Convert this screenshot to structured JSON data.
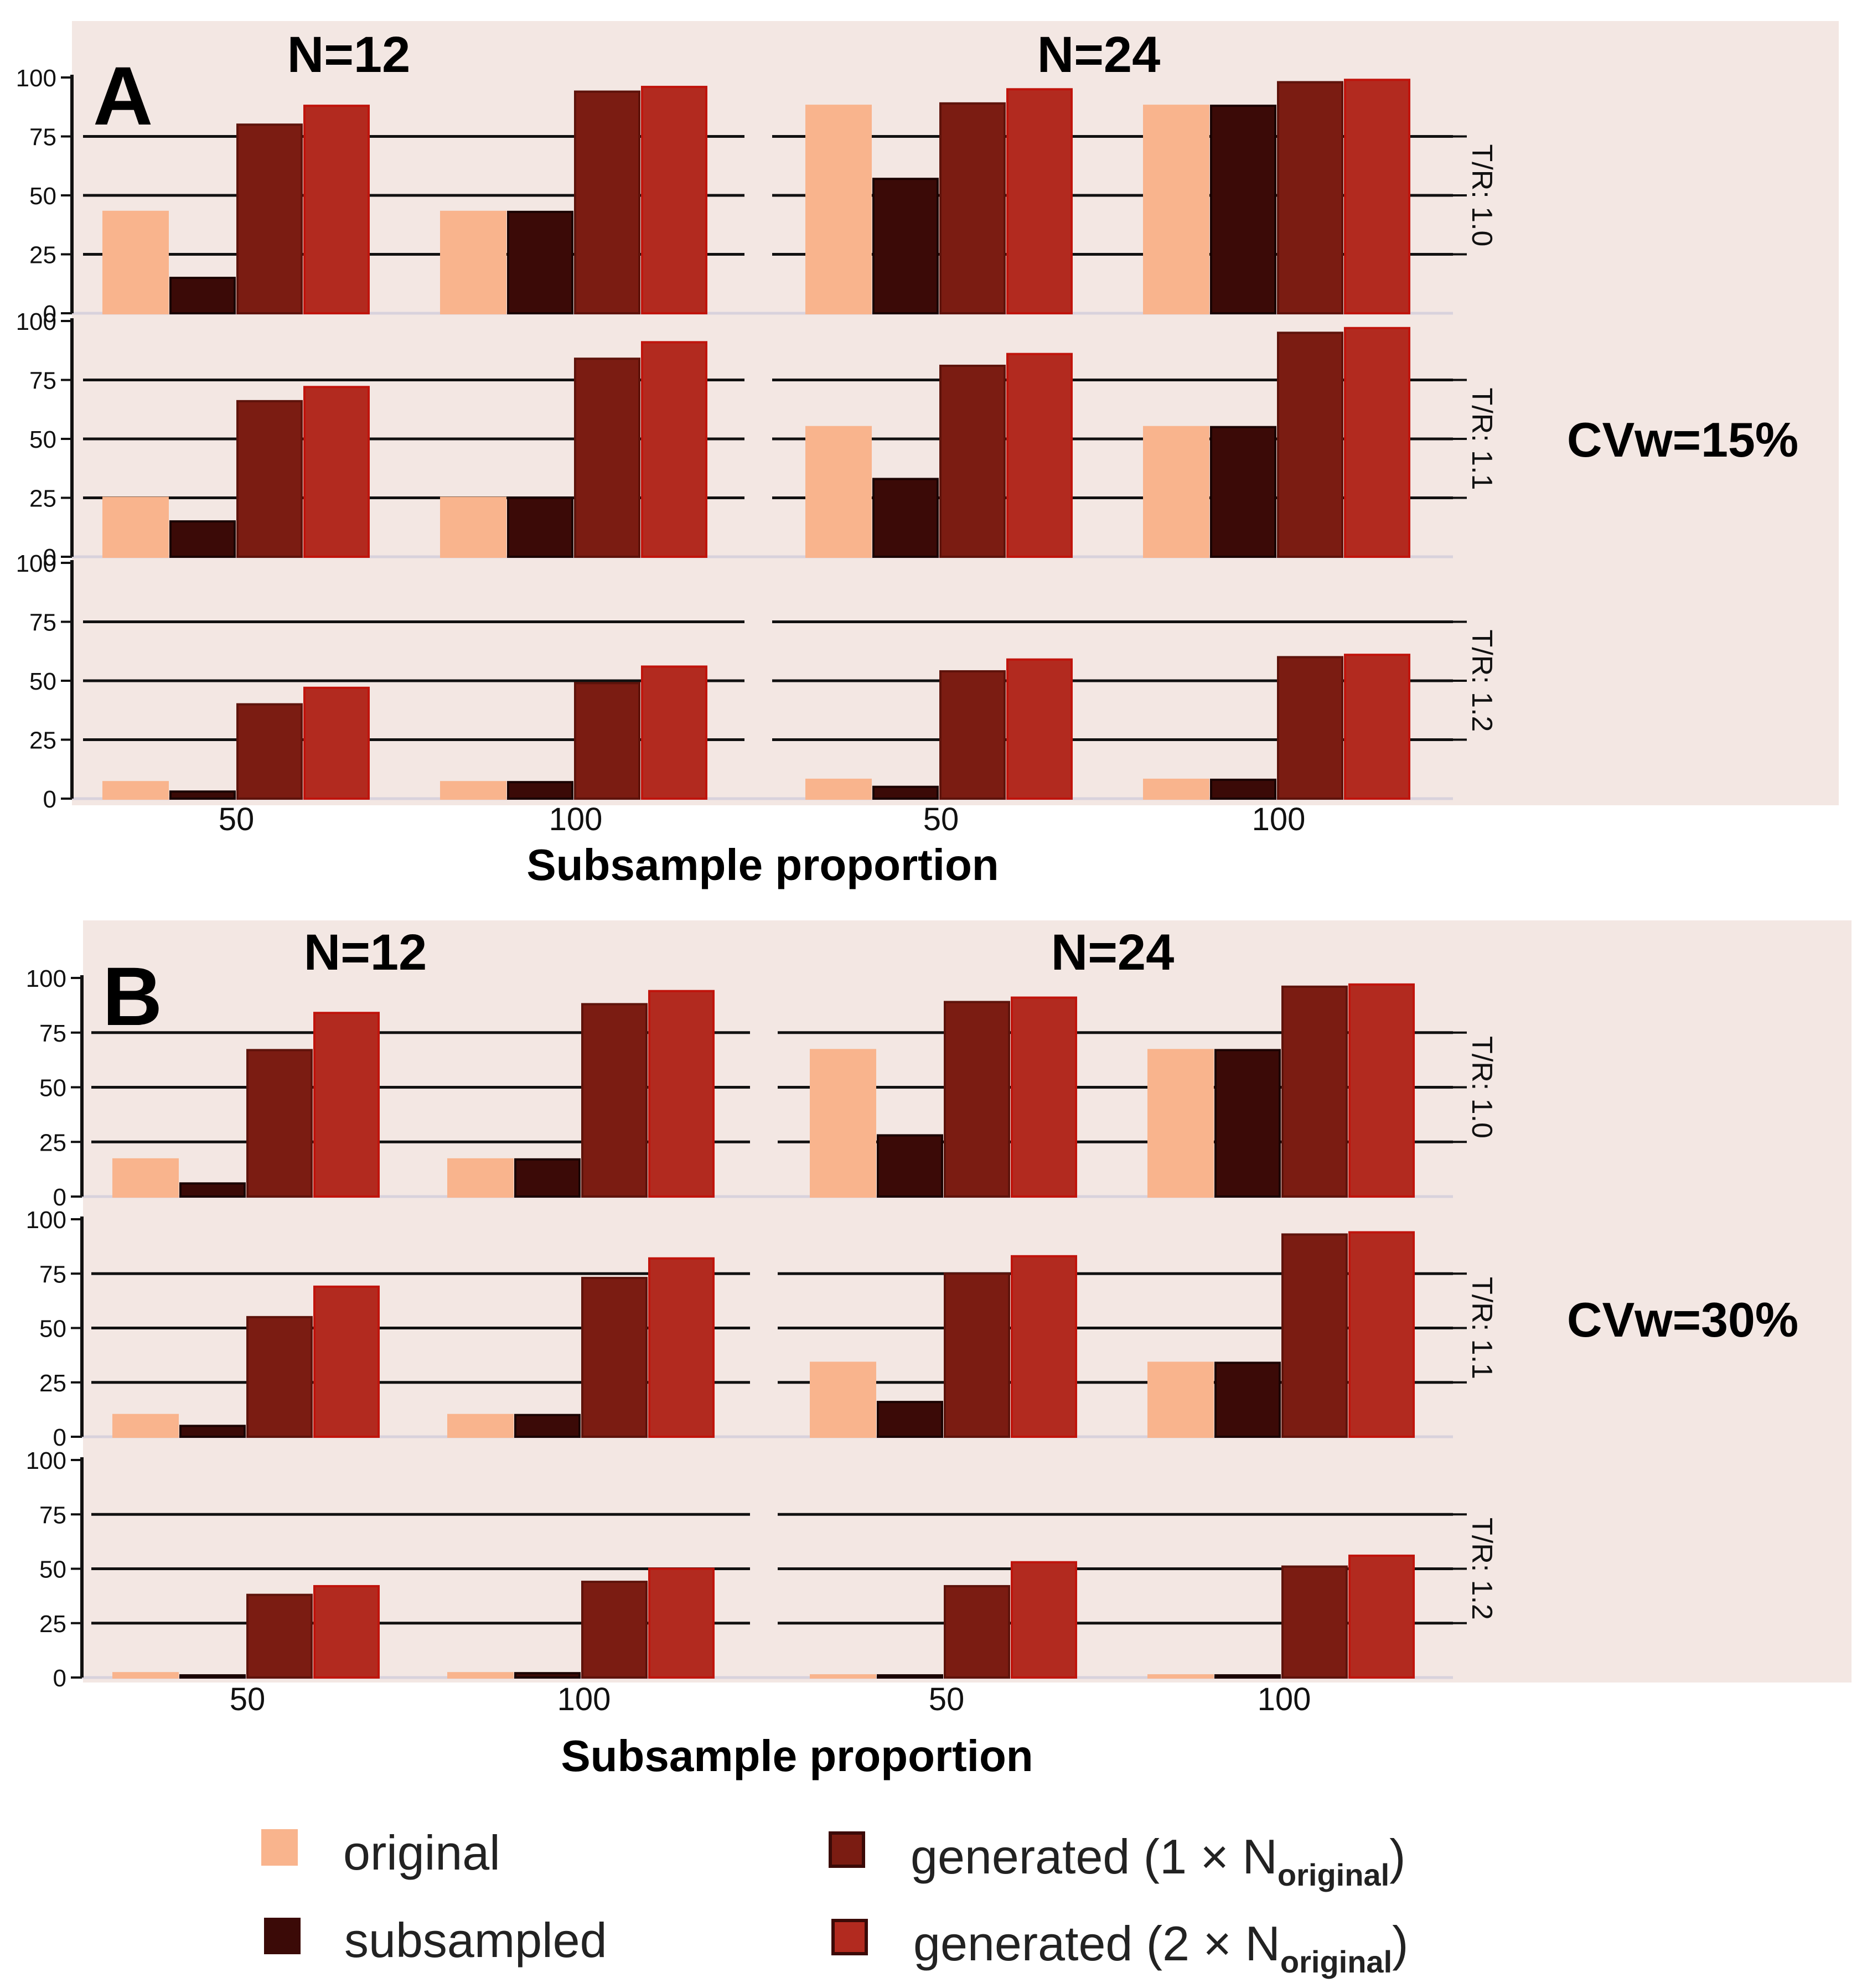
{
  "panels": [
    {
      "letter": "A",
      "cvw_label": "CVw=15%",
      "col_titles": [
        "N=12",
        "N=24"
      ],
      "x_axis_label": "Subsample proportion",
      "x_tick_labels": [
        "50",
        "100",
        "50",
        "100"
      ],
      "y_tick_labels": [
        "0",
        "25",
        "50",
        "75",
        "100"
      ],
      "row_labels": [
        "T/R: 1.0",
        "T/R: 1.1",
        "T/R: 1.2"
      ]
    },
    {
      "letter": "B",
      "cvw_label": "CVw=30%",
      "col_titles": [
        "N=12",
        "N=24"
      ],
      "x_axis_label": "Subsample proportion",
      "x_tick_labels": [
        "50",
        "100",
        "50",
        "100"
      ],
      "y_tick_labels": [
        "0",
        "25",
        "50",
        "75",
        "100"
      ],
      "row_labels": [
        "T/R: 1.0",
        "T/R: 1.1",
        "T/R: 1.2"
      ]
    }
  ],
  "legend": [
    {
      "label": "original",
      "color": "#f9b48d"
    },
    {
      "label": "subsampled",
      "color": "#3b0a07"
    },
    {
      "label": "generated",
      "multiplier": "1",
      "times": "×",
      "n": "N",
      "sub": "original",
      "color": "#7b1c12"
    },
    {
      "label": "generated",
      "multiplier": "2",
      "times": "×",
      "n": "N",
      "sub": "original",
      "color": "#b22a1f"
    }
  ],
  "colors": {
    "panel_bg": "#f3e7e3",
    "original": "#f9b48d",
    "subsampled": "#3b0a07",
    "generated_1x": "#7b1c12",
    "generated_2x": "#b22a1f"
  },
  "chart_data": [
    {
      "type": "bar",
      "panel": "A",
      "title": "CVw=15%",
      "xlabel": "Subsample proportion",
      "ylim": [
        0,
        100
      ],
      "columns": [
        "N=12",
        "N=24"
      ],
      "rows": [
        "T/R: 1.0",
        "T/R: 1.1",
        "T/R: 1.2"
      ],
      "categories": [
        "50",
        "100"
      ],
      "series_names": [
        "original",
        "subsampled",
        "generated (1× N original)",
        "generated (2× N original)"
      ],
      "values": [
        [
          [
            [
              43,
              15,
              80,
              88
            ],
            [
              43,
              43,
              94,
              96
            ]
          ],
          [
            [
              88,
              57,
              89,
              95
            ],
            [
              88,
              88,
              98,
              99
            ]
          ]
        ],
        [
          [
            [
              25,
              15,
              66,
              72
            ],
            [
              25,
              25,
              84,
              91
            ]
          ],
          [
            [
              55,
              33,
              81,
              86
            ],
            [
              55,
              55,
              95,
              97
            ]
          ]
        ],
        [
          [
            [
              7,
              3,
              40,
              47
            ],
            [
              7,
              7,
              49,
              56
            ]
          ],
          [
            [
              8,
              5,
              54,
              59
            ],
            [
              8,
              8,
              60,
              61
            ]
          ]
        ]
      ]
    },
    {
      "type": "bar",
      "panel": "B",
      "title": "CVw=30%",
      "xlabel": "Subsample proportion",
      "ylim": [
        0,
        100
      ],
      "columns": [
        "N=12",
        "N=24"
      ],
      "rows": [
        "T/R: 1.0",
        "T/R: 1.1",
        "T/R: 1.2"
      ],
      "categories": [
        "50",
        "100"
      ],
      "series_names": [
        "original",
        "subsampled",
        "generated (1× N original)",
        "generated (2× N original)"
      ],
      "values": [
        [
          [
            [
              17,
              6,
              67,
              84
            ],
            [
              17,
              17,
              88,
              94
            ]
          ],
          [
            [
              67,
              28,
              89,
              91
            ],
            [
              67,
              67,
              96,
              97
            ]
          ]
        ],
        [
          [
            [
              10,
              5,
              55,
              69
            ],
            [
              10,
              10,
              73,
              82
            ]
          ],
          [
            [
              34,
              16,
              75,
              83
            ],
            [
              34,
              34,
              93,
              94
            ]
          ]
        ],
        [
          [
            [
              2,
              1,
              38,
              42
            ],
            [
              2,
              2,
              44,
              50
            ]
          ],
          [
            [
              1,
              1,
              42,
              53
            ],
            [
              1,
              1,
              51,
              56
            ]
          ]
        ]
      ]
    }
  ]
}
